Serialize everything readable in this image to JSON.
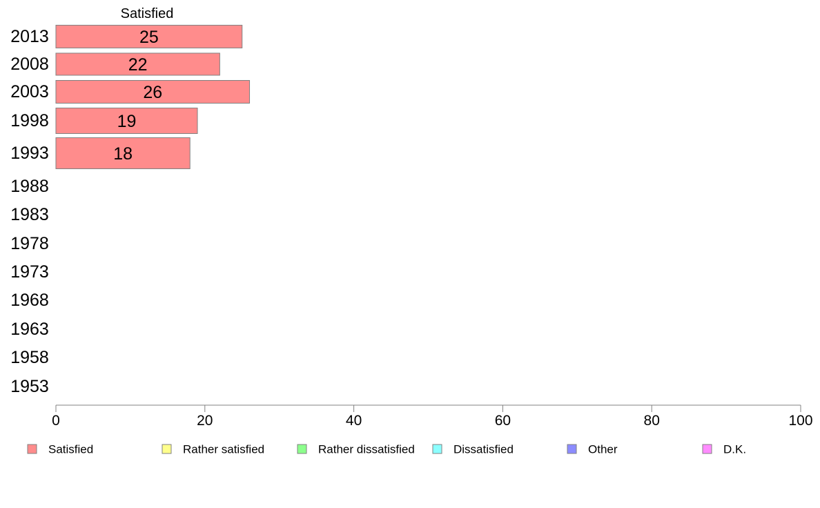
{
  "chart_data": {
    "type": "bar",
    "orientation": "horizontal",
    "title": "",
    "xlabel": "",
    "ylabel": "",
    "categories": [
      "2013",
      "2008",
      "2003",
      "1998",
      "1993",
      "1988",
      "1983",
      "1978",
      "1973",
      "1968",
      "1963",
      "1958",
      "1953"
    ],
    "series": [
      {
        "name": "Satisfied",
        "color": "#ff8c8c",
        "values": [
          25,
          22,
          26,
          19,
          18,
          null,
          null,
          null,
          null,
          null,
          null,
          null,
          null
        ]
      },
      {
        "name": "Rather satisfied",
        "color": "#ffff8c",
        "values": [
          null,
          null,
          null,
          null,
          null,
          null,
          null,
          null,
          null,
          null,
          null,
          null,
          null
        ]
      },
      {
        "name": "Rather dissatisfied",
        "color": "#8cff8c",
        "values": [
          null,
          null,
          null,
          null,
          null,
          null,
          null,
          null,
          null,
          null,
          null,
          null,
          null
        ]
      },
      {
        "name": "Dissatisfied",
        "color": "#8cffff",
        "values": [
          null,
          null,
          null,
          null,
          null,
          null,
          null,
          null,
          null,
          null,
          null,
          null,
          null
        ]
      },
      {
        "name": "Other",
        "color": "#8c8cff",
        "values": [
          null,
          null,
          null,
          null,
          null,
          null,
          null,
          null,
          null,
          null,
          null,
          null,
          null
        ]
      },
      {
        "name": "D.K.",
        "color": "#ff8cff",
        "values": [
          null,
          null,
          null,
          null,
          null,
          null,
          null,
          null,
          null,
          null,
          null,
          null,
          null
        ]
      }
    ],
    "column_header": "Satisfied",
    "xlim": [
      0,
      100
    ],
    "xticks": [
      "0",
      "20",
      "40",
      "60",
      "80",
      "100"
    ],
    "grid": false,
    "legend_position": "bottom"
  }
}
